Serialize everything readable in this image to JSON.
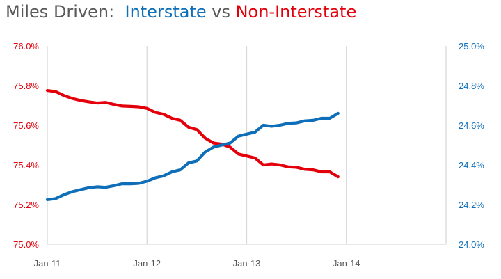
{
  "title": {
    "part1": "Miles Driven:  ",
    "part2": "Interstate",
    "part3": " vs ",
    "part4": "Non-Interstate"
  },
  "colors": {
    "title_gray": "#595959",
    "interstate": "#0E6FB8",
    "non_interstate": "#E3000B",
    "grid": "#D9D9D9"
  },
  "chart_data": {
    "type": "line",
    "title": "Miles Driven:  Interstate vs Non-Interstate",
    "x_axis": {
      "categories": [
        "Jan-11",
        "Jan-12",
        "Jan-13",
        "Jan-14"
      ],
      "start": "Jan-11",
      "end": "Jan-15"
    },
    "y_left": {
      "ylim": [
        75.0,
        76.0
      ],
      "ticks": [
        "75.0%",
        "75.2%",
        "75.4%",
        "75.6%",
        "75.8%",
        "76.0%"
      ]
    },
    "y_right": {
      "ylim": [
        24.0,
        25.0
      ],
      "ticks": [
        "24.0%",
        "24.2%",
        "24.4%",
        "24.6%",
        "24.8%",
        "25.0%"
      ]
    },
    "grid": "vertical",
    "series": [
      {
        "name": "Non-Interstate",
        "axis": "left",
        "color": "#E3000B",
        "x": [
          "Jan-11",
          "Feb-11",
          "Mar-11",
          "Apr-11",
          "May-11",
          "Jun-11",
          "Jul-11",
          "Aug-11",
          "Sep-11",
          "Oct-11",
          "Nov-11",
          "Dec-11",
          "Jan-12",
          "Feb-12",
          "Mar-12",
          "Apr-12",
          "May-12",
          "Jun-12",
          "Jul-12",
          "Aug-12",
          "Sep-12",
          "Oct-12",
          "Nov-12",
          "Dec-12",
          "Jan-13",
          "Feb-13",
          "Mar-13",
          "Apr-13",
          "May-13",
          "Jun-13",
          "Jul-13",
          "Aug-13",
          "Sep-13",
          "Oct-13",
          "Nov-13",
          "Dec-13"
        ],
        "values": [
          75.775,
          75.77,
          75.75,
          75.735,
          75.725,
          75.718,
          75.712,
          75.715,
          75.705,
          75.697,
          75.695,
          75.693,
          75.685,
          75.665,
          75.655,
          75.635,
          75.625,
          75.59,
          75.578,
          75.535,
          75.51,
          75.505,
          75.49,
          75.455,
          75.445,
          75.435,
          75.4,
          75.405,
          75.4,
          75.39,
          75.388,
          75.378,
          75.375,
          75.365,
          75.365,
          75.34
        ]
      },
      {
        "name": "Interstate",
        "axis": "right",
        "color": "#0E6FB8",
        "x": [
          "Jan-11",
          "Feb-11",
          "Mar-11",
          "Apr-11",
          "May-11",
          "Jun-11",
          "Jul-11",
          "Aug-11",
          "Sep-11",
          "Oct-11",
          "Nov-11",
          "Dec-11",
          "Jan-12",
          "Feb-12",
          "Mar-12",
          "Apr-12",
          "May-12",
          "Jun-12",
          "Jul-12",
          "Aug-12",
          "Sep-12",
          "Oct-12",
          "Nov-12",
          "Dec-12",
          "Jan-13",
          "Feb-13",
          "Mar-13",
          "Apr-13",
          "May-13",
          "Jun-13",
          "Jul-13",
          "Aug-13",
          "Sep-13",
          "Oct-13",
          "Nov-13",
          "Dec-13"
        ],
        "values": [
          24.225,
          24.23,
          24.25,
          24.265,
          24.275,
          24.285,
          24.29,
          24.287,
          24.295,
          24.305,
          24.305,
          24.307,
          24.318,
          24.335,
          24.345,
          24.365,
          24.375,
          24.41,
          24.42,
          24.465,
          24.49,
          24.5,
          24.51,
          24.545,
          24.555,
          24.565,
          24.6,
          24.595,
          24.6,
          24.61,
          24.612,
          24.622,
          24.625,
          24.635,
          24.635,
          24.66
        ]
      }
    ]
  }
}
